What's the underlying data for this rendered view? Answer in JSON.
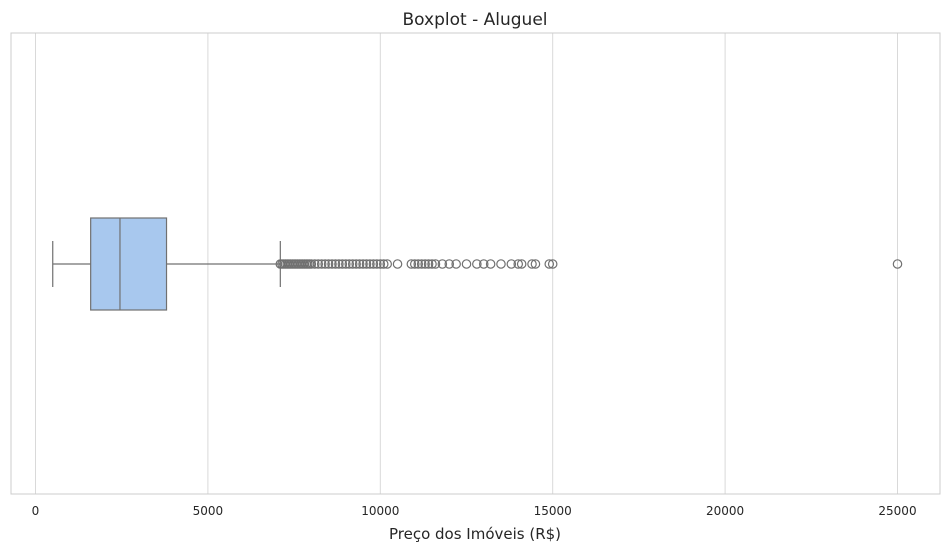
{
  "chart_data": {
    "type": "boxplot",
    "orientation": "horizontal",
    "title": "Boxplot - Aluguel",
    "xlabel": "Preço dos Imóveis (R$)",
    "ylabel": "",
    "xlim": [
      -1300,
      26300
    ],
    "xticks": [
      0,
      5000,
      10000,
      15000,
      20000,
      25000
    ],
    "xtick_labels": [
      "0",
      "5000",
      "10000",
      "15000",
      "20000",
      "25000"
    ],
    "grid": "vertical",
    "box": {
      "whisker_low": 500,
      "q1": 1600,
      "median": 2450,
      "q3": 3800,
      "whisker_high": 7100,
      "fill_color": "#a8c8ee",
      "line_color": "#707070"
    },
    "outliers": [
      7100,
      7150,
      7200,
      7250,
      7300,
      7350,
      7400,
      7450,
      7500,
      7550,
      7600,
      7650,
      7700,
      7750,
      7800,
      7850,
      7900,
      7950,
      8000,
      8100,
      8200,
      8300,
      8400,
      8500,
      8600,
      8700,
      8800,
      8900,
      9000,
      9100,
      9200,
      9300,
      9400,
      9500,
      9600,
      9700,
      9800,
      9900,
      10000,
      10100,
      10200,
      10500,
      10900,
      11000,
      11100,
      11200,
      11300,
      11400,
      11500,
      11600,
      11800,
      12000,
      12200,
      12500,
      12800,
      13000,
      13200,
      13500,
      13800,
      14000,
      14100,
      14400,
      14500,
      14900,
      15000,
      25000
    ]
  }
}
